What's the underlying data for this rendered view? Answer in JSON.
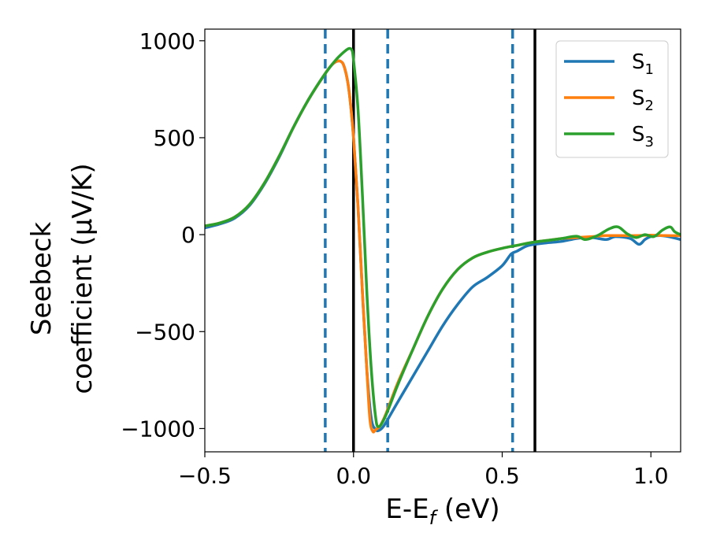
{
  "chart_data": {
    "type": "line",
    "xlabel": "E-E_f (eV)",
    "ylabel_lines": [
      "Seebeck",
      "coefficient  (μV/K)"
    ],
    "xlim": [
      -0.5,
      1.1
    ],
    "ylim": [
      -1120,
      1060
    ],
    "x_ticks": [
      -0.5,
      0.0,
      0.5,
      1.0
    ],
    "x_tick_labels": [
      "−0.5",
      "0.0",
      "0.5",
      "1.0"
    ],
    "y_ticks": [
      -1000,
      -500,
      0,
      500,
      1000
    ],
    "y_tick_labels": [
      "−1000",
      "−500",
      "0",
      "500",
      "1000"
    ],
    "grid": false,
    "legend_position": "top-right",
    "vertical_lines": [
      {
        "x": -0.095,
        "style": "dashed",
        "color": "#1f77b4"
      },
      {
        "x": 0.0,
        "style": "solid",
        "color": "#000000"
      },
      {
        "x": 0.115,
        "style": "dashed",
        "color": "#1f77b4"
      },
      {
        "x": 0.535,
        "style": "dashed",
        "color": "#1f77b4"
      },
      {
        "x": 0.61,
        "style": "solid",
        "color": "#000000"
      }
    ],
    "series": [
      {
        "name": "S",
        "sub": "1",
        "color": "#1f77b4",
        "points": [
          [
            -0.5,
            35
          ],
          [
            -0.45,
            55
          ],
          [
            -0.4,
            85
          ],
          [
            -0.35,
            150
          ],
          [
            -0.3,
            260
          ],
          [
            -0.25,
            400
          ],
          [
            -0.2,
            560
          ],
          [
            -0.15,
            700
          ],
          [
            -0.1,
            820
          ],
          [
            -0.07,
            880
          ],
          [
            -0.045,
            895
          ],
          [
            -0.03,
            860
          ],
          [
            -0.015,
            740
          ],
          [
            0.0,
            500
          ],
          [
            0.015,
            150
          ],
          [
            0.03,
            -300
          ],
          [
            0.045,
            -700
          ],
          [
            0.06,
            -950
          ],
          [
            0.075,
            -1005
          ],
          [
            0.085,
            -1010
          ],
          [
            0.1,
            -990
          ],
          [
            0.12,
            -940
          ],
          [
            0.15,
            -860
          ],
          [
            0.2,
            -730
          ],
          [
            0.25,
            -600
          ],
          [
            0.3,
            -470
          ],
          [
            0.35,
            -360
          ],
          [
            0.4,
            -270
          ],
          [
            0.45,
            -220
          ],
          [
            0.5,
            -160
          ],
          [
            0.53,
            -100
          ],
          [
            0.55,
            -85
          ],
          [
            0.58,
            -60
          ],
          [
            0.6,
            -52
          ],
          [
            0.65,
            -42
          ],
          [
            0.7,
            -35
          ],
          [
            0.75,
            -20
          ],
          [
            0.8,
            -15
          ],
          [
            0.85,
            -25
          ],
          [
            0.88,
            -10
          ],
          [
            0.93,
            -20
          ],
          [
            0.96,
            -50
          ],
          [
            0.98,
            -25
          ],
          [
            1.0,
            -10
          ],
          [
            1.03,
            -5
          ],
          [
            1.06,
            -10
          ],
          [
            1.1,
            -25
          ]
        ]
      },
      {
        "name": "S",
        "sub": "2",
        "color": "#ff7f0e",
        "points": [
          [
            -0.5,
            45
          ],
          [
            -0.45,
            60
          ],
          [
            -0.4,
            90
          ],
          [
            -0.35,
            155
          ],
          [
            -0.3,
            265
          ],
          [
            -0.25,
            405
          ],
          [
            -0.2,
            560
          ],
          [
            -0.15,
            700
          ],
          [
            -0.1,
            820
          ],
          [
            -0.07,
            880
          ],
          [
            -0.045,
            895
          ],
          [
            -0.03,
            860
          ],
          [
            -0.015,
            740
          ],
          [
            0.0,
            500
          ],
          [
            0.015,
            150
          ],
          [
            0.03,
            -300
          ],
          [
            0.045,
            -700
          ],
          [
            0.055,
            -950
          ],
          [
            0.065,
            -1015
          ],
          [
            0.075,
            -1005
          ],
          [
            0.09,
            -985
          ],
          [
            0.11,
            -920
          ],
          [
            0.15,
            -760
          ],
          [
            0.2,
            -590
          ],
          [
            0.25,
            -420
          ],
          [
            0.3,
            -280
          ],
          [
            0.35,
            -180
          ],
          [
            0.4,
            -120
          ],
          [
            0.45,
            -90
          ],
          [
            0.5,
            -70
          ],
          [
            0.55,
            -55
          ],
          [
            0.6,
            -40
          ],
          [
            0.65,
            -30
          ],
          [
            0.7,
            -20
          ],
          [
            0.75,
            -15
          ],
          [
            0.8,
            -10
          ],
          [
            0.85,
            -5
          ],
          [
            0.9,
            -5
          ],
          [
            0.95,
            -5
          ],
          [
            1.0,
            -3
          ],
          [
            1.05,
            -5
          ],
          [
            1.1,
            -5
          ]
        ]
      },
      {
        "name": "S",
        "sub": "3",
        "color": "#2ca02c",
        "points": [
          [
            -0.5,
            45
          ],
          [
            -0.45,
            60
          ],
          [
            -0.4,
            90
          ],
          [
            -0.35,
            155
          ],
          [
            -0.3,
            265
          ],
          [
            -0.25,
            405
          ],
          [
            -0.2,
            560
          ],
          [
            -0.15,
            700
          ],
          [
            -0.1,
            820
          ],
          [
            -0.06,
            900
          ],
          [
            -0.03,
            945
          ],
          [
            -0.015,
            960
          ],
          [
            -0.005,
            950
          ],
          [
            0.0,
            900
          ],
          [
            0.015,
            650
          ],
          [
            0.03,
            200
          ],
          [
            0.045,
            -300
          ],
          [
            0.06,
            -700
          ],
          [
            0.075,
            -950
          ],
          [
            0.085,
            -990
          ],
          [
            0.1,
            -960
          ],
          [
            0.12,
            -890
          ],
          [
            0.15,
            -770
          ],
          [
            0.2,
            -590
          ],
          [
            0.25,
            -420
          ],
          [
            0.3,
            -280
          ],
          [
            0.35,
            -180
          ],
          [
            0.4,
            -120
          ],
          [
            0.45,
            -90
          ],
          [
            0.5,
            -70
          ],
          [
            0.55,
            -55
          ],
          [
            0.6,
            -40
          ],
          [
            0.65,
            -30
          ],
          [
            0.7,
            -20
          ],
          [
            0.75,
            -8
          ],
          [
            0.78,
            -25
          ],
          [
            0.82,
            -5
          ],
          [
            0.86,
            30
          ],
          [
            0.89,
            40
          ],
          [
            0.92,
            5
          ],
          [
            0.95,
            -15
          ],
          [
            0.98,
            0
          ],
          [
            1.01,
            -10
          ],
          [
            1.04,
            25
          ],
          [
            1.065,
            40
          ],
          [
            1.08,
            15
          ],
          [
            1.1,
            0
          ]
        ]
      }
    ]
  }
}
